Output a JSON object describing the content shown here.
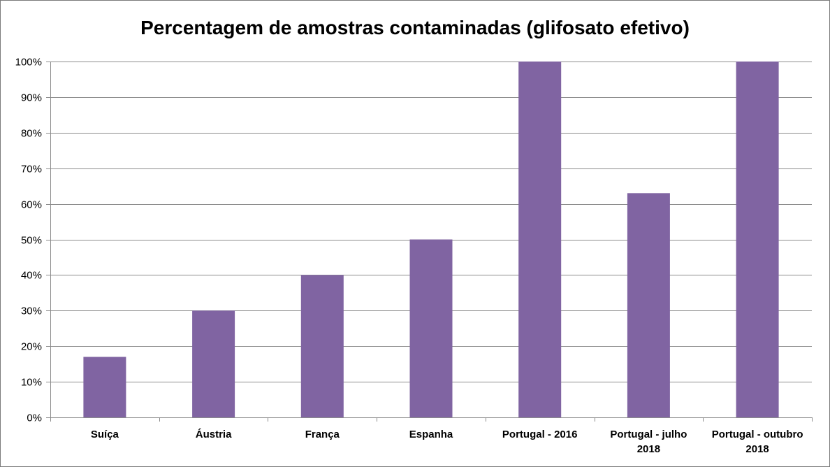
{
  "chart_data": {
    "type": "bar",
    "title": "Percentagem de amostras contaminadas (glifosato efetivo)",
    "xlabel": "",
    "ylabel": "",
    "ylim": [
      0,
      100
    ],
    "yticks": [
      0,
      10,
      20,
      30,
      40,
      50,
      60,
      70,
      80,
      90,
      100
    ],
    "ytick_suffix": "%",
    "grid": true,
    "legend": "none",
    "categories": [
      [
        "Suíça"
      ],
      [
        "Áustria"
      ],
      [
        "França"
      ],
      [
        "Espanha"
      ],
      [
        "Portugal - 2016"
      ],
      [
        "Portugal - julho",
        "2018"
      ],
      [
        "Portugal - outubro",
        "2018"
      ]
    ],
    "values": [
      17,
      30,
      40,
      50,
      100,
      63,
      100
    ],
    "bar_color": "#8064a2"
  }
}
